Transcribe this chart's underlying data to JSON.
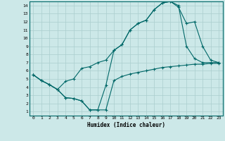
{
  "bg_color": "#cce8e8",
  "line_color": "#006868",
  "grid_color": "#aacece",
  "xlabel": "Humidex (Indice chaleur)",
  "xlim": [
    -0.5,
    23.5
  ],
  "ylim": [
    0.5,
    14.5
  ],
  "xticks": [
    0,
    1,
    2,
    3,
    4,
    5,
    6,
    7,
    8,
    9,
    10,
    11,
    12,
    13,
    14,
    15,
    16,
    17,
    18,
    19,
    20,
    21,
    22,
    23
  ],
  "yticks": [
    1,
    2,
    3,
    4,
    5,
    6,
    7,
    8,
    9,
    10,
    11,
    12,
    13,
    14
  ],
  "line1_x": [
    0,
    1,
    2,
    3,
    4,
    5,
    6,
    7,
    8,
    9,
    10,
    11,
    12,
    13,
    14,
    15,
    16,
    17,
    18,
    19,
    20,
    21,
    22,
    23
  ],
  "line1_y": [
    5.5,
    4.8,
    4.3,
    3.7,
    2.7,
    2.6,
    2.3,
    1.2,
    1.2,
    4.2,
    8.5,
    9.2,
    11.0,
    11.8,
    12.2,
    13.5,
    14.3,
    14.5,
    14.0,
    9.0,
    7.5,
    7.0,
    7.0,
    7.0
  ],
  "line2_x": [
    0,
    1,
    2,
    3,
    4,
    5,
    6,
    7,
    8,
    9,
    10,
    11,
    12,
    13,
    14,
    15,
    16,
    17,
    18,
    19,
    20,
    21,
    22,
    23
  ],
  "line2_y": [
    5.5,
    4.8,
    4.3,
    3.7,
    4.7,
    5.0,
    6.3,
    6.5,
    7.0,
    7.3,
    8.5,
    9.2,
    11.0,
    11.8,
    12.2,
    13.5,
    14.3,
    14.5,
    13.8,
    11.8,
    12.0,
    9.0,
    7.3,
    7.0
  ],
  "line3_x": [
    0,
    1,
    2,
    3,
    4,
    5,
    6,
    7,
    8,
    9,
    10,
    11,
    12,
    13,
    14,
    15,
    16,
    17,
    18,
    19,
    20,
    21,
    22,
    23
  ],
  "line3_y": [
    5.5,
    4.8,
    4.3,
    3.7,
    2.7,
    2.6,
    2.3,
    1.2,
    1.2,
    1.2,
    4.8,
    5.3,
    5.6,
    5.8,
    6.0,
    6.2,
    6.4,
    6.5,
    6.6,
    6.7,
    6.8,
    6.8,
    6.9,
    6.9
  ]
}
